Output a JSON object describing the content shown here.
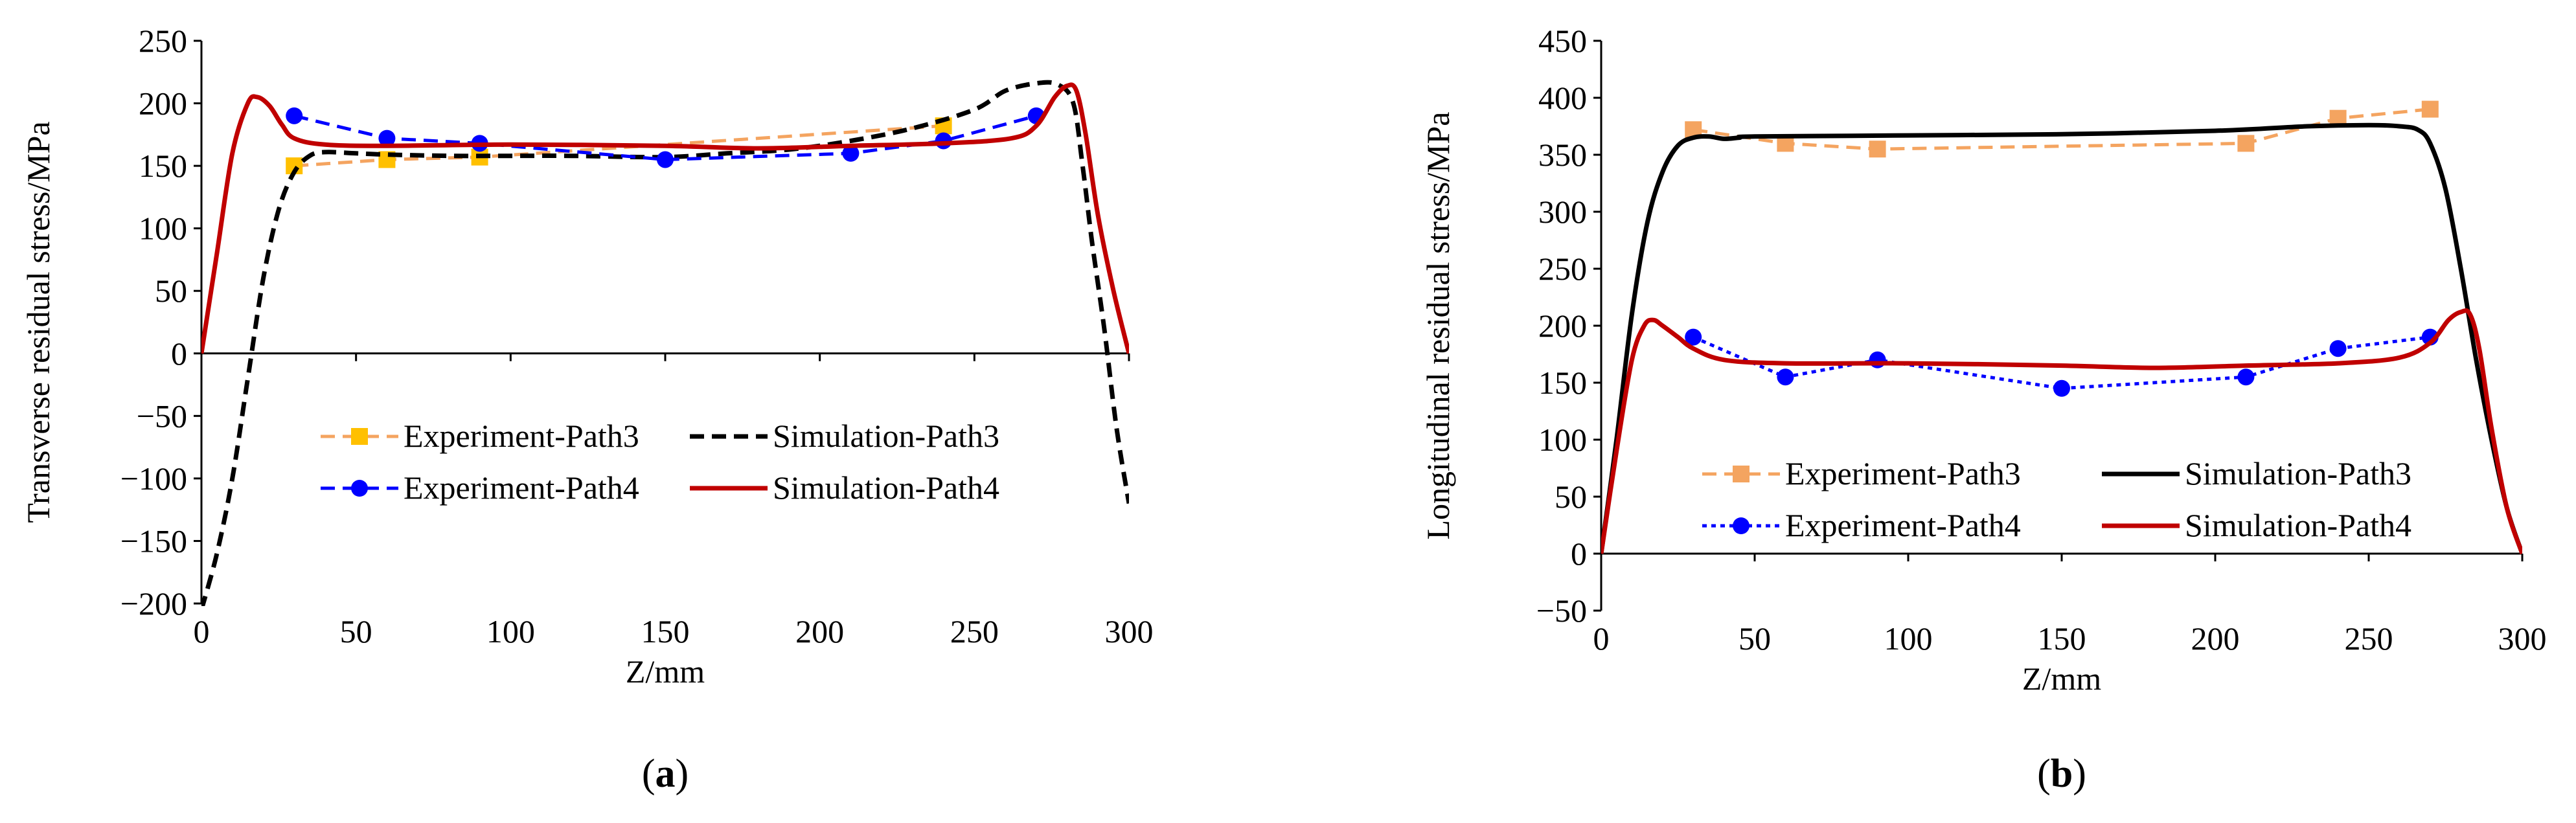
{
  "chart_data": [
    {
      "type": "line",
      "panel_label": "(a)",
      "panel_letter": "a",
      "xlabel": "Z/mm",
      "ylabel": "Transverse residual stress/MPa",
      "xlim": [
        0,
        300
      ],
      "ylim": [
        -200,
        250
      ],
      "xticks": [
        0,
        50,
        100,
        150,
        200,
        250,
        300
      ],
      "yticks": [
        -200,
        -150,
        -100,
        -50,
        0,
        50,
        100,
        150,
        200,
        250
      ],
      "grid": false,
      "legend_position": "lower-center",
      "series": [
        {
          "name": "Experiment-Path3",
          "style": "dashed",
          "color": "#f4a460",
          "marker": "square",
          "marker_color": "#ffc000",
          "x": [
            30,
            60,
            90,
            240
          ],
          "y": [
            150,
            155,
            157,
            182
          ]
        },
        {
          "name": "Simulation-Path3",
          "style": "dashed",
          "color": "#000000",
          "marker": "none",
          "x": [
            0,
            5,
            10,
            15,
            20,
            25,
            30,
            35,
            40,
            50,
            60,
            80,
            100,
            120,
            150,
            170,
            190,
            210,
            230,
            250,
            260,
            270,
            277,
            282,
            285,
            288,
            292,
            296,
            300
          ],
          "y": [
            -205,
            -160,
            -100,
            -20,
            60,
            115,
            145,
            158,
            161,
            160,
            159,
            158,
            158,
            158,
            157,
            160,
            163,
            170,
            180,
            195,
            210,
            216,
            215,
            200,
            150,
            90,
            20,
            -60,
            -120
          ]
        },
        {
          "name": "Experiment-Path4",
          "style": "dashed",
          "color": "#0000ff",
          "marker": "circle",
          "marker_color": "#0000ff",
          "x": [
            30,
            60,
            90,
            150,
            210,
            240,
            270
          ],
          "y": [
            190,
            172,
            168,
            155,
            160,
            170,
            190
          ]
        },
        {
          "name": "Simulation-Path4",
          "style": "solid",
          "color": "#c00000",
          "marker": "none",
          "x": [
            0,
            5,
            10,
            15,
            18,
            22,
            26,
            30,
            40,
            60,
            100,
            150,
            180,
            210,
            240,
            262,
            270,
            276,
            280,
            283,
            286,
            290,
            295,
            300
          ],
          "y": [
            0,
            80,
            160,
            200,
            205,
            198,
            183,
            172,
            167,
            166,
            167,
            166,
            164,
            166,
            168,
            172,
            182,
            205,
            214,
            210,
            175,
            110,
            50,
            0
          ]
        }
      ]
    },
    {
      "type": "line",
      "panel_label": "(b)",
      "panel_letter": "b",
      "xlabel": "Z/mm",
      "ylabel": "Longitudinal residual stress/MPa",
      "xlim": [
        0,
        300
      ],
      "ylim": [
        -50,
        450
      ],
      "xticks": [
        0,
        50,
        100,
        150,
        200,
        250,
        300
      ],
      "yticks": [
        -50,
        0,
        50,
        100,
        150,
        200,
        250,
        300,
        350,
        400,
        450
      ],
      "grid": false,
      "legend_position": "lower-center",
      "series": [
        {
          "name": "Experiment-Path3",
          "style": "dashed",
          "color": "#f4a460",
          "marker": "square",
          "marker_color": "#f4a460",
          "x": [
            30,
            60,
            90,
            210,
            240,
            270
          ],
          "y": [
            372,
            360,
            355,
            360,
            382,
            390
          ]
        },
        {
          "name": "Simulation-Path3",
          "style": "solid",
          "color": "#000000",
          "marker": "none",
          "x": [
            0,
            5,
            10,
            15,
            20,
            25,
            30,
            35,
            40,
            45,
            50,
            100,
            150,
            200,
            230,
            250,
            260,
            266,
            270,
            275,
            280,
            285,
            290,
            295,
            300
          ],
          "y": [
            0,
            100,
            210,
            290,
            335,
            358,
            365,
            366,
            364,
            365,
            366,
            367,
            368,
            371,
            375,
            376,
            375,
            372,
            360,
            320,
            250,
            170,
            100,
            40,
            0
          ]
        },
        {
          "name": "Experiment-Path4",
          "style": "dotted",
          "color": "#0000ff",
          "marker": "circle",
          "marker_color": "#0000ff",
          "x": [
            30,
            60,
            90,
            150,
            210,
            240,
            270
          ],
          "y": [
            190,
            155,
            170,
            145,
            155,
            180,
            190
          ]
        },
        {
          "name": "Simulation-Path4",
          "style": "solid",
          "color": "#c00000",
          "marker": "none",
          "x": [
            0,
            5,
            10,
            14,
            17,
            20,
            25,
            30,
            40,
            60,
            100,
            150,
            180,
            210,
            240,
            260,
            270,
            276,
            280,
            283,
            286,
            290,
            295,
            300
          ],
          "y": [
            0,
            90,
            170,
            200,
            205,
            200,
            190,
            180,
            170,
            167,
            167,
            165,
            163,
            165,
            167,
            172,
            185,
            205,
            212,
            210,
            180,
            110,
            40,
            0
          ]
        }
      ]
    }
  ]
}
